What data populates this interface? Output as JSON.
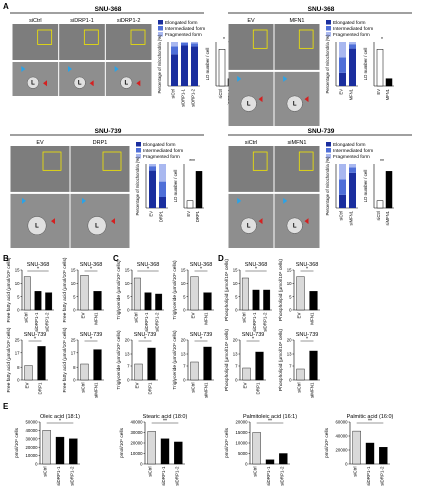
{
  "panel_letters": [
    "A",
    "B",
    "C",
    "D",
    "E"
  ],
  "colors": {
    "elongated": "#1a2e9e",
    "intermediated": "#4f6fd8",
    "fragmented": "#a9b8f0",
    "bar_ctrl": "#d9d9d9",
    "bar_treat": "#000000",
    "em_bg": "#7d7d7d",
    "zoom_box": "#f2e600",
    "arrow_blue": "#2aa3e8",
    "arrow_red": "#d42020"
  },
  "A": {
    "groups": [
      {
        "id": "a1",
        "cell_line": "SNU-368",
        "image_labels": [
          "siCtrl",
          "siDRP1-1",
          "siDRP1-2"
        ],
        "legend": [
          "Elongated form",
          "Intermediated form",
          "Fragmented form"
        ],
        "stack_ylabel": "Percentage of mitochondria (%)",
        "stack_cats": [
          "siCtrl",
          "siDRP1-1",
          "siDRP1-2"
        ],
        "ld_ylabel": "LD number / cell",
        "ld_cats": [
          "siCtrl",
          "siDRP1-1",
          "siDRP1-2"
        ],
        "sig": [
          "*",
          "**"
        ]
      },
      {
        "id": "a2",
        "cell_line": "SNU-368",
        "image_labels": [
          "EV",
          "MFN1"
        ],
        "legend": [
          "Elongated form",
          "Intermediated form",
          "Fragmented form"
        ],
        "stack_ylabel": "Percentage of mitochondria (%)",
        "stack_cats": [
          "EV",
          "MFN1"
        ],
        "ld_ylabel": "LD number / cell",
        "ld_cats": [
          "EV",
          "MFN1"
        ],
        "sig": [
          "*"
        ]
      },
      {
        "id": "a3",
        "cell_line": "SNU-739",
        "image_labels": [
          "EV",
          "DRP1"
        ],
        "legend": [
          "Elongated form",
          "Intermediated form",
          "Fragmented form"
        ],
        "stack_ylabel": "Percentage of mitochondria (%)",
        "stack_cats": [
          "EV",
          "DRP1"
        ],
        "ld_ylabel": "LD number / cell",
        "ld_cats": [
          "EV",
          "DRP1"
        ],
        "sig": [
          "***"
        ]
      },
      {
        "id": "a4",
        "cell_line": "SNU-739",
        "image_labels": [
          "siCtrl",
          "siMFN1"
        ],
        "legend": [
          "Elongated form",
          "Intermediated form",
          "Fragmented form"
        ],
        "stack_ylabel": "Percentage of mitochondria (%)",
        "stack_cats": [
          "siCtrl",
          "siMFN1"
        ],
        "ld_ylabel": "LD number / cell",
        "ld_cats": [
          "siCtrl",
          "siMFN1"
        ],
        "sig": [
          "**"
        ]
      }
    ],
    "L_marker": "L"
  },
  "chart_data": [
    {
      "type": "bar",
      "panel": "B",
      "title": "SNU-368",
      "ylabel": "Free fatty acid (µmol/10⁶ cells)",
      "categories": [
        "siCtrl",
        "siDRP1-1",
        "siDRP1-2"
      ],
      "values": [
        12.5,
        7,
        6.5
      ],
      "ylim": [
        0,
        15
      ],
      "sig": "*"
    },
    {
      "type": "bar",
      "panel": "B",
      "title": "SNU-368",
      "ylabel": "Free fatty acid (µmol/10⁶ cells)",
      "categories": [
        "EV",
        "MFN1"
      ],
      "values": [
        13,
        7
      ],
      "ylim": [
        0,
        15
      ],
      "sig": "*"
    },
    {
      "type": "bar",
      "panel": "B",
      "title": "SNU-739",
      "ylabel": "Free fatty acid (µmol/10⁶ cells)",
      "categories": [
        "EV",
        "DRP1"
      ],
      "values": [
        9,
        21
      ],
      "ylim": [
        0,
        25
      ],
      "sig": "*"
    },
    {
      "type": "bar",
      "panel": "B",
      "title": "SNU-739",
      "ylabel": "Free fatty acid (µmol/10⁶ cells)",
      "categories": [
        "siCtrl",
        "siMFN1"
      ],
      "values": [
        10,
        19
      ],
      "ylim": [
        0,
        25
      ],
      "sig": "*"
    },
    {
      "type": "bar",
      "panel": "C",
      "title": "SNU-368",
      "ylabel": "Triglyceride (µmol/10⁶ cells)",
      "categories": [
        "siCtrl",
        "siDRP1-1",
        "siDRP1-2"
      ],
      "values": [
        12,
        6.5,
        6
      ],
      "ylim": [
        0,
        15
      ],
      "sig": "*"
    },
    {
      "type": "bar",
      "panel": "C",
      "title": "SNU-368",
      "ylabel": "Triglyceride (µmol/10⁶ cells)",
      "categories": [
        "EV",
        "MFN1"
      ],
      "values": [
        12.5,
        6.5
      ],
      "ylim": [
        0,
        15
      ],
      "sig": "*"
    },
    {
      "type": "bar",
      "panel": "C",
      "title": "SNU-739",
      "ylabel": "Triglyceride (µmol/10⁶ cells)",
      "categories": [
        "EV",
        "DRP1"
      ],
      "values": [
        8,
        16
      ],
      "ylim": [
        0,
        20
      ],
      "sig": "*"
    },
    {
      "type": "bar",
      "panel": "C",
      "title": "SNU-739",
      "ylabel": "Triglyceride (µmol/10⁶ cells)",
      "categories": [
        "siCtrl",
        "siMFN1"
      ],
      "values": [
        9,
        16.5
      ],
      "ylim": [
        0,
        20
      ],
      "sig": "*"
    },
    {
      "type": "bar",
      "panel": "D",
      "title": "SNU-368",
      "ylabel": "Phospholipid (µmol/10⁶ cells)",
      "categories": [
        "siCtrl",
        "siDRP1-1",
        "siDRP1-2"
      ],
      "values": [
        12,
        7.5,
        7.5
      ],
      "ylim": [
        0,
        15
      ],
      "sig": "*"
    },
    {
      "type": "bar",
      "panel": "D",
      "title": "SNU-368",
      "ylabel": "Phospholipid (µmol/10⁶ cells)",
      "categories": [
        "EV",
        "MFN1"
      ],
      "values": [
        12.5,
        7
      ],
      "ylim": [
        0,
        15
      ],
      "sig": "*"
    },
    {
      "type": "bar",
      "panel": "D",
      "title": "SNU-739",
      "ylabel": "Phospholipid (µmol/10⁶ cells)",
      "categories": [
        "EV",
        "DRP1"
      ],
      "values": [
        6,
        14
      ],
      "ylim": [
        0,
        20
      ],
      "sig": "*"
    },
    {
      "type": "bar",
      "panel": "D",
      "title": "SNU-739",
      "ylabel": "Phospholipid (µmol/10⁶ cells)",
      "categories": [
        "siCtrl",
        "siMFN1"
      ],
      "values": [
        5.5,
        14.5
      ],
      "ylim": [
        0,
        20
      ],
      "sig": "*"
    },
    {
      "type": "bar",
      "panel": "E",
      "title": "Oleic acid (18:1)",
      "ylabel": "pmol/10⁶ cells",
      "categories": [
        "siCtrl",
        "siDRP1-1",
        "siDRP1-2"
      ],
      "values": [
        40000,
        32000,
        30000
      ],
      "ylim": [
        0,
        50000
      ],
      "yticks": [
        0,
        10000,
        20000,
        30000,
        40000,
        50000
      ],
      "sig": "*"
    },
    {
      "type": "bar",
      "panel": "E",
      "title": "Stearic acid (18:0)",
      "ylabel": "pmol/10⁶ cells",
      "categories": [
        "siCtrl",
        "siDRP1-1",
        "siDRP1-2"
      ],
      "values": [
        31000,
        24000,
        21000
      ],
      "ylim": [
        0,
        40000
      ],
      "yticks": [
        0,
        10000,
        20000,
        30000,
        40000
      ],
      "sig": "**"
    },
    {
      "type": "bar",
      "panel": "E",
      "title": "Palmitoleic acid (16:1)",
      "ylabel": "pmol/10⁶ cells",
      "categories": [
        "siCtrl",
        "siDRP1-1",
        "siDRP1-2"
      ],
      "values": [
        15000,
        2000,
        5000
      ],
      "ylim": [
        0,
        20000
      ],
      "yticks": [
        0,
        5000,
        10000,
        15000,
        20000
      ],
      "sig": "**"
    },
    {
      "type": "bar",
      "panel": "E",
      "title": "Palmitic acid (16:0)",
      "ylabel": "pmol/10⁶ cells",
      "categories": [
        "siCtrl",
        "siDRP1-1",
        "siDRP1-2"
      ],
      "values": [
        47000,
        30000,
        24000
      ],
      "ylim": [
        0,
        60000
      ],
      "yticks": [
        0,
        20000,
        40000,
        60000
      ],
      "sig": "**"
    }
  ],
  "stack_data": [
    {
      "group": "a1",
      "bars": [
        [
          0.72,
          0.18,
          0.1
        ],
        [
          0.92,
          0.06,
          0.02
        ],
        [
          0.9,
          0.07,
          0.03
        ]
      ]
    },
    {
      "group": "a2",
      "bars": [
        [
          0.3,
          0.35,
          0.35
        ],
        [
          0.85,
          0.1,
          0.05
        ]
      ]
    },
    {
      "group": "a3",
      "bars": [
        [
          0.85,
          0.1,
          0.05
        ],
        [
          0.25,
          0.35,
          0.4
        ]
      ]
    },
    {
      "group": "a4",
      "bars": [
        [
          0.3,
          0.35,
          0.35
        ],
        [
          0.8,
          0.12,
          0.08
        ]
      ]
    }
  ],
  "ld_data": [
    {
      "group": "a1",
      "values": [
        10,
        2,
        2
      ]
    },
    {
      "group": "a2",
      "values": [
        10,
        2
      ]
    },
    {
      "group": "a3",
      "values": [
        2,
        10
      ]
    },
    {
      "group": "a4",
      "values": [
        2,
        10
      ]
    }
  ]
}
